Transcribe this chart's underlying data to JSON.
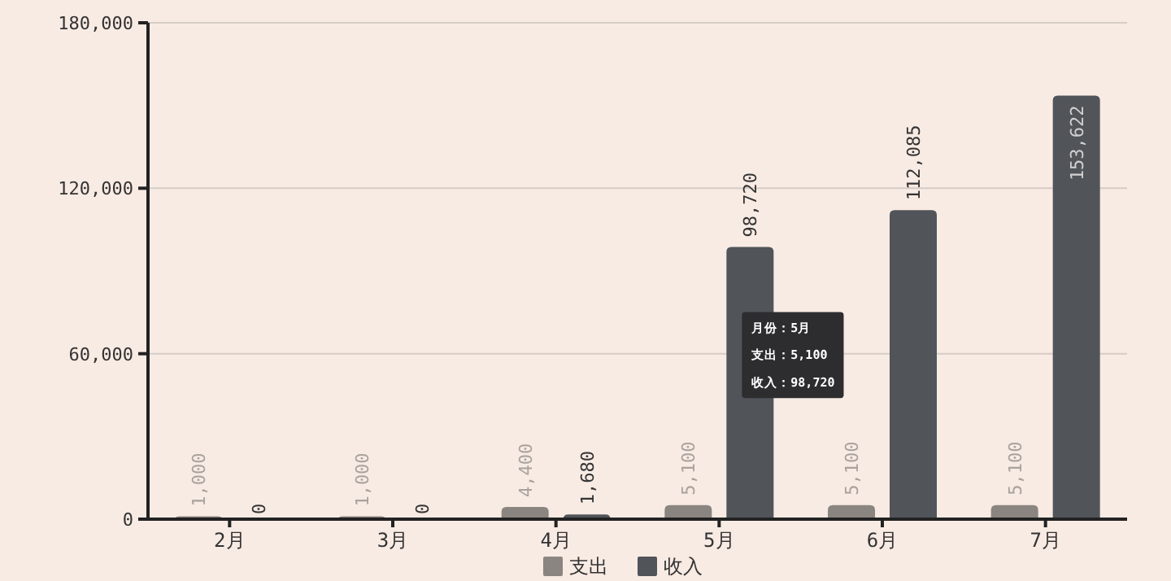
{
  "chart_data": {
    "type": "bar",
    "categories": [
      "2月",
      "3月",
      "4月",
      "5月",
      "6月",
      "7月"
    ],
    "series": [
      {
        "name": "支出",
        "color": "#8a8581",
        "values": [
          1000,
          1000,
          4400,
          5100,
          5100,
          5100
        ],
        "value_labels": [
          "1,000",
          "1,000",
          "4,400",
          "5,100",
          "5,100",
          "5,100"
        ]
      },
      {
        "name": "收入",
        "color": "#515459",
        "values": [
          0,
          0,
          1680,
          98720,
          112085,
          153622
        ],
        "value_labels": [
          "0",
          "0",
          "1,680",
          "98,720",
          "112,085",
          "153,622"
        ]
      }
    ],
    "ylim": [
      0,
      180000
    ],
    "yticks": [
      {
        "value": 0,
        "label": "0"
      },
      {
        "value": 60000,
        "label": "60,000"
      },
      {
        "value": 120000,
        "label": "120,000"
      },
      {
        "value": 180000,
        "label": "180,000"
      }
    ],
    "grid": "y",
    "legend": "bottom",
    "annotations": [
      {
        "text": "月份：5月",
        "x": "5月",
        "y": 68000
      },
      {
        "text": "支出：5,100",
        "x": "5月",
        "y": 58000
      },
      {
        "text": "收入：98,720",
        "x": "5月",
        "y": 48000
      }
    ]
  }
}
